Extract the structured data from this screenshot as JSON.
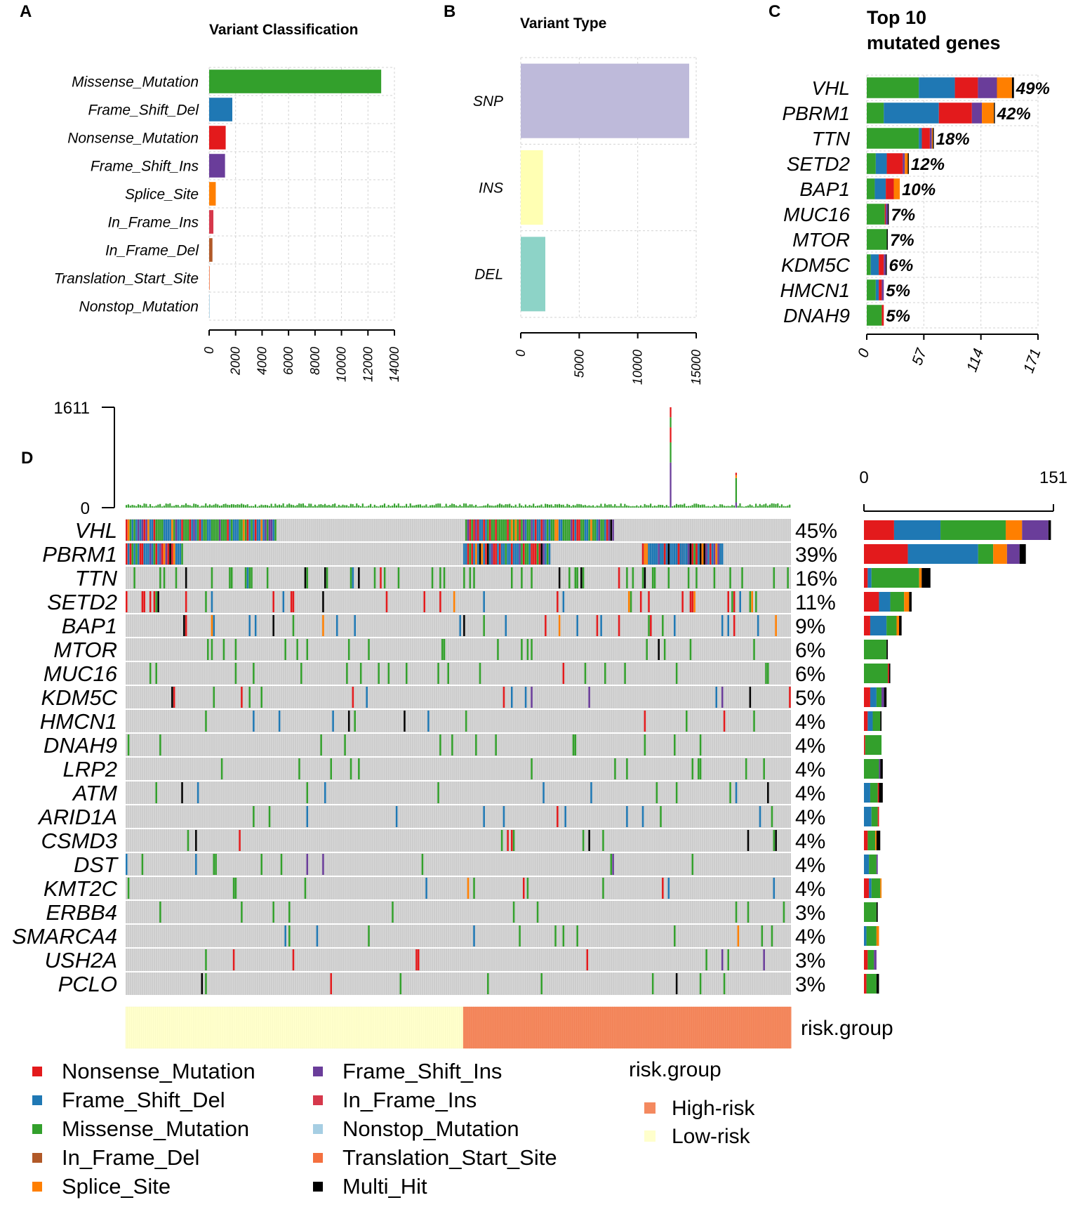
{
  "colors": {
    "nonsense": "#E31A1C",
    "frameshift_del": "#1F78B4",
    "missense": "#33A02C",
    "inframe_del": "#B15928",
    "splice": "#FF7F00",
    "frameshift_ins": "#6A3D9A",
    "inframe_ins": "#D6384B",
    "nonstop": "#A6CEE3",
    "translation_start": "#F4703F",
    "multi_hit": "#000000",
    "snp": "#BEBADA",
    "ins": "#FFFFB3",
    "del": "#8DD3C7",
    "high_risk": "#F4895F",
    "low_risk": "#FFFFCC",
    "grid": "#D3D3D3"
  },
  "chart_data": [
    {
      "panel": "A",
      "type": "bar",
      "orientation": "horizontal",
      "title": "Variant Classification",
      "categories": [
        "Missense_Mutation",
        "Frame_Shift_Del",
        "Nonsense_Mutation",
        "Frame_Shift_Ins",
        "Splice_Site",
        "In_Frame_Ins",
        "In_Frame_Del",
        "Translation_Start_Site",
        "Nonstop_Mutation"
      ],
      "values": [
        13000,
        1750,
        1250,
        1200,
        500,
        320,
        250,
        30,
        10
      ],
      "color_keys": [
        "missense",
        "frameshift_del",
        "nonsense",
        "frameshift_ins",
        "splice",
        "inframe_ins",
        "inframe_del",
        "translation_start",
        "nonstop"
      ],
      "xlim": [
        0,
        14000
      ],
      "ticks": [
        "0",
        "2000",
        "4000",
        "6000",
        "8000",
        "10000",
        "12000",
        "14000"
      ]
    },
    {
      "panel": "B",
      "type": "bar",
      "orientation": "horizontal",
      "title": "Variant Type",
      "categories": [
        "SNP",
        "INS",
        "DEL"
      ],
      "values": [
        14400,
        1900,
        2100
      ],
      "color_keys": [
        "snp",
        "ins",
        "del"
      ],
      "xlim": [
        0,
        15000
      ],
      "ticks": [
        "0",
        "5000",
        "10000",
        "15000"
      ]
    },
    {
      "panel": "C",
      "type": "bar",
      "orientation": "horizontal",
      "stacked": true,
      "title": "Top 10 mutated genes",
      "title_lines": [
        "Top 10",
        "mutated genes"
      ],
      "xlim": [
        0,
        171
      ],
      "ticks": [
        "0",
        "57",
        "114",
        "171"
      ],
      "genes": [
        {
          "gene": "VHL",
          "pct": "49%",
          "segments": [
            [
              "missense",
              52
            ],
            [
              "frameshift_del",
              36
            ],
            [
              "nonsense",
              23
            ],
            [
              "frameshift_ins",
              19
            ],
            [
              "splice",
              15
            ],
            [
              "multi_hit",
              2
            ]
          ]
        },
        {
          "gene": "PBRM1",
          "pct": "42%",
          "segments": [
            [
              "missense",
              17
            ],
            [
              "frameshift_del",
              55
            ],
            [
              "nonsense",
              33
            ],
            [
              "frameshift_ins",
              10
            ],
            [
              "splice",
              12
            ],
            [
              "multi_hit",
              1
            ]
          ]
        },
        {
          "gene": "TTN",
          "pct": "18%",
          "segments": [
            [
              "missense",
              52
            ],
            [
              "frameshift_del",
              3
            ],
            [
              "nonsense",
              8
            ],
            [
              "frameshift_ins",
              2
            ],
            [
              "splice",
              1
            ],
            [
              "multi_hit",
              1
            ]
          ]
        },
        {
          "gene": "SETD2",
          "pct": "12%",
          "segments": [
            [
              "missense",
              9
            ],
            [
              "frameshift_del",
              11
            ],
            [
              "nonsense",
              16
            ],
            [
              "frameshift_ins",
              2
            ],
            [
              "splice",
              3
            ],
            [
              "multi_hit",
              1
            ]
          ]
        },
        {
          "gene": "BAP1",
          "pct": "10%",
          "segments": [
            [
              "missense",
              8
            ],
            [
              "frameshift_del",
              11
            ],
            [
              "nonsense",
              8
            ],
            [
              "splice",
              6
            ]
          ]
        },
        {
          "gene": "MUC16",
          "pct": "7%",
          "segments": [
            [
              "missense",
              18
            ],
            [
              "nonsense",
              1
            ],
            [
              "frameshift_ins",
              2
            ],
            [
              "multi_hit",
              1
            ]
          ]
        },
        {
          "gene": "MTOR",
          "pct": "7%",
          "segments": [
            [
              "missense",
              20
            ],
            [
              "multi_hit",
              1
            ]
          ]
        },
        {
          "gene": "KDM5C",
          "pct": "6%",
          "segments": [
            [
              "missense",
              4
            ],
            [
              "frameshift_del",
              8
            ],
            [
              "nonsense",
              5
            ],
            [
              "frameshift_ins",
              2
            ],
            [
              "multi_hit",
              1
            ]
          ]
        },
        {
          "gene": "HMCN1",
          "pct": "5%",
          "segments": [
            [
              "missense",
              9
            ],
            [
              "frameshift_del",
              3
            ],
            [
              "nonsense",
              3
            ],
            [
              "frameshift_ins",
              2
            ]
          ]
        },
        {
          "gene": "DNAH9",
          "pct": "5%",
          "segments": [
            [
              "missense",
              15
            ],
            [
              "nonsense",
              2
            ]
          ]
        }
      ]
    },
    {
      "panel": "D",
      "type": "oncoplot",
      "tmb_axis": {
        "max": 1611,
        "max_label": "1611",
        "min_label": "0"
      },
      "right_axis": {
        "max": 151,
        "labels": [
          "0",
          "151"
        ]
      },
      "n_samples": 335,
      "low_risk_samples": 170,
      "genes": [
        "VHL",
        "PBRM1",
        "TTN",
        "SETD2",
        "BAP1",
        "MTOR",
        "MUC16",
        "KDM5C",
        "HMCN1",
        "DNAH9",
        "LRP2",
        "ATM",
        "ARID1A",
        "CSMD3",
        "DST",
        "KMT2C",
        "ERBB4",
        "SMARCA4",
        "USH2A",
        "PCLO"
      ],
      "percentages": [
        "45%",
        "39%",
        "16%",
        "11%",
        "9%",
        "6%",
        "6%",
        "5%",
        "4%",
        "4%",
        "4%",
        "4%",
        "4%",
        "4%",
        "4%",
        "4%",
        "3%",
        "4%",
        "3%",
        "3%"
      ],
      "gene_bars": [
        [
          [
            "nonsense",
            24
          ],
          [
            "frameshift_del",
            37
          ],
          [
            "missense",
            52
          ],
          [
            "splice",
            13
          ],
          [
            "frameshift_ins",
            21
          ],
          [
            "multi_hit",
            2
          ]
        ],
        [
          [
            "nonsense",
            35
          ],
          [
            "frameshift_del",
            56
          ],
          [
            "missense",
            12
          ],
          [
            "splice",
            11
          ],
          [
            "frameshift_ins",
            10
          ],
          [
            "multi_hit",
            5
          ]
        ],
        [
          [
            "nonsense",
            3
          ],
          [
            "frameshift_del",
            3
          ],
          [
            "missense",
            38
          ],
          [
            "splice",
            2
          ],
          [
            "multi_hit",
            7
          ]
        ],
        [
          [
            "nonsense",
            12
          ],
          [
            "frameshift_del",
            9
          ],
          [
            "missense",
            11
          ],
          [
            "splice",
            4
          ],
          [
            "multi_hit",
            2
          ]
        ],
        [
          [
            "nonsense",
            5
          ],
          [
            "frameshift_del",
            13
          ],
          [
            "missense",
            8
          ],
          [
            "splice",
            2
          ],
          [
            "multi_hit",
            2
          ]
        ],
        [
          [
            "missense",
            18
          ],
          [
            "multi_hit",
            1
          ]
        ],
        [
          [
            "missense",
            19
          ],
          [
            "nonsense",
            1
          ],
          [
            "multi_hit",
            1
          ]
        ],
        [
          [
            "nonsense",
            5
          ],
          [
            "frameshift_del",
            5
          ],
          [
            "missense",
            4
          ],
          [
            "frameshift_ins",
            2
          ],
          [
            "multi_hit",
            2
          ]
        ],
        [
          [
            "nonsense",
            3
          ],
          [
            "frameshift_del",
            4
          ],
          [
            "missense",
            6
          ],
          [
            "multi_hit",
            1
          ]
        ],
        [
          [
            "nonsense",
            1
          ],
          [
            "missense",
            13
          ]
        ],
        [
          [
            "missense",
            12
          ],
          [
            "frameshift_ins",
            1
          ],
          [
            "multi_hit",
            2
          ]
        ],
        [
          [
            "frameshift_del",
            5
          ],
          [
            "missense",
            6
          ],
          [
            "nonsense",
            1
          ],
          [
            "multi_hit",
            3
          ]
        ],
        [
          [
            "frameshift_del",
            6
          ],
          [
            "missense",
            5
          ],
          [
            "nonsense",
            1
          ]
        ],
        [
          [
            "nonsense",
            3
          ],
          [
            "missense",
            6
          ],
          [
            "splice",
            1
          ],
          [
            "multi_hit",
            3
          ]
        ],
        [
          [
            "frameshift_del",
            4
          ],
          [
            "missense",
            6
          ],
          [
            "frameshift_ins",
            1
          ]
        ],
        [
          [
            "nonsense",
            4
          ],
          [
            "frameshift_del",
            2
          ],
          [
            "missense",
            7
          ],
          [
            "splice",
            1
          ]
        ],
        [
          [
            "missense",
            10
          ],
          [
            "multi_hit",
            1
          ]
        ],
        [
          [
            "frameshift_del",
            2
          ],
          [
            "missense",
            8
          ],
          [
            "splice",
            2
          ]
        ],
        [
          [
            "nonsense",
            3
          ],
          [
            "missense",
            5
          ],
          [
            "frameshift_ins",
            2
          ]
        ],
        [
          [
            "nonsense",
            2
          ],
          [
            "missense",
            8
          ],
          [
            "multi_hit",
            2
          ]
        ]
      ],
      "risk_label": "risk.group"
    }
  ],
  "panel_labels": {
    "a": "A",
    "b": "B",
    "c": "C",
    "d": "D"
  },
  "legend": {
    "items": [
      {
        "label": "Nonsense_Mutation",
        "color_key": "nonsense"
      },
      {
        "label": "Frame_Shift_Del",
        "color_key": "frameshift_del"
      },
      {
        "label": "Missense_Mutation",
        "color_key": "missense"
      },
      {
        "label": "In_Frame_Del",
        "color_key": "inframe_del"
      },
      {
        "label": "Splice_Site",
        "color_key": "splice"
      },
      {
        "label": "Frame_Shift_Ins",
        "color_key": "frameshift_ins"
      },
      {
        "label": "In_Frame_Ins",
        "color_key": "inframe_ins"
      },
      {
        "label": "Nonstop_Mutation",
        "color_key": "nonstop"
      },
      {
        "label": "Translation_Start_Site",
        "color_key": "translation_start"
      },
      {
        "label": "Multi_Hit",
        "color_key": "multi_hit"
      }
    ],
    "risk_title": "risk.group",
    "risk_items": [
      {
        "label": "High-risk",
        "color_key": "high_risk"
      },
      {
        "label": "Low-risk",
        "color_key": "low_risk"
      }
    ]
  }
}
